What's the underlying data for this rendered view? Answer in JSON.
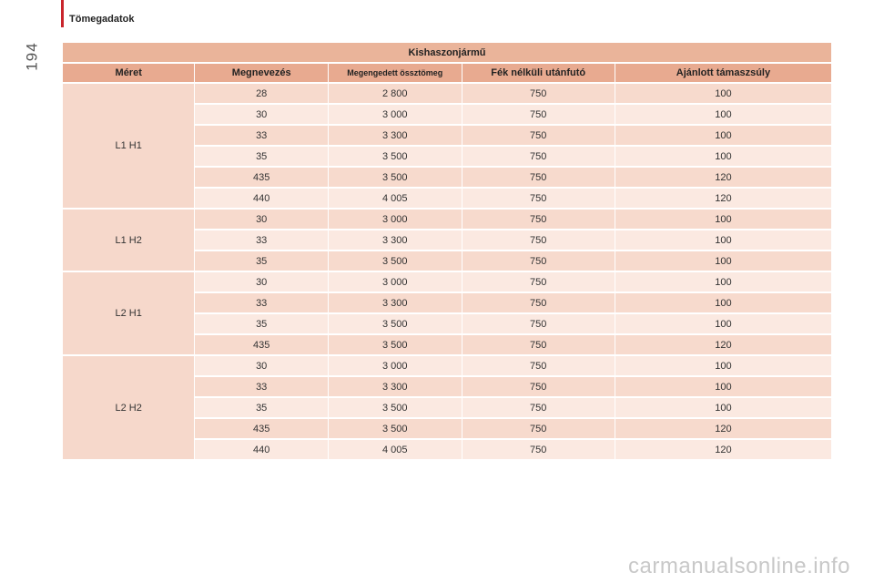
{
  "header": {
    "section_title": "Tömegadatok",
    "page_number": "194"
  },
  "table": {
    "title": "Kishaszonjármű",
    "columns": [
      "Méret",
      "Megnevezés",
      "Megengedett össztömeg",
      "Fék nélküli utánfutó",
      "Ajánlott támaszsúly"
    ],
    "groups": [
      {
        "size": "L1 H1",
        "rows": [
          [
            "28",
            "2 800",
            "750",
            "100"
          ],
          [
            "30",
            "3 000",
            "750",
            "100"
          ],
          [
            "33",
            "3 300",
            "750",
            "100"
          ],
          [
            "35",
            "3 500",
            "750",
            "100"
          ],
          [
            "435",
            "3 500",
            "750",
            "120"
          ],
          [
            "440",
            "4 005",
            "750",
            "120"
          ]
        ]
      },
      {
        "size": "L1 H2",
        "rows": [
          [
            "30",
            "3 000",
            "750",
            "100"
          ],
          [
            "33",
            "3 300",
            "750",
            "100"
          ],
          [
            "35",
            "3 500",
            "750",
            "100"
          ]
        ]
      },
      {
        "size": "L2 H1",
        "rows": [
          [
            "30",
            "3 000",
            "750",
            "100"
          ],
          [
            "33",
            "3 300",
            "750",
            "100"
          ],
          [
            "35",
            "3 500",
            "750",
            "100"
          ],
          [
            "435",
            "3 500",
            "750",
            "120"
          ]
        ]
      },
      {
        "size": "L2 H2",
        "rows": [
          [
            "30",
            "3 000",
            "750",
            "100"
          ],
          [
            "33",
            "3 300",
            "750",
            "100"
          ],
          [
            "35",
            "3 500",
            "750",
            "100"
          ],
          [
            "435",
            "3 500",
            "750",
            "120"
          ],
          [
            "440",
            "4 005",
            "750",
            "120"
          ]
        ]
      }
    ]
  },
  "watermark": "carmanualsonline.info"
}
